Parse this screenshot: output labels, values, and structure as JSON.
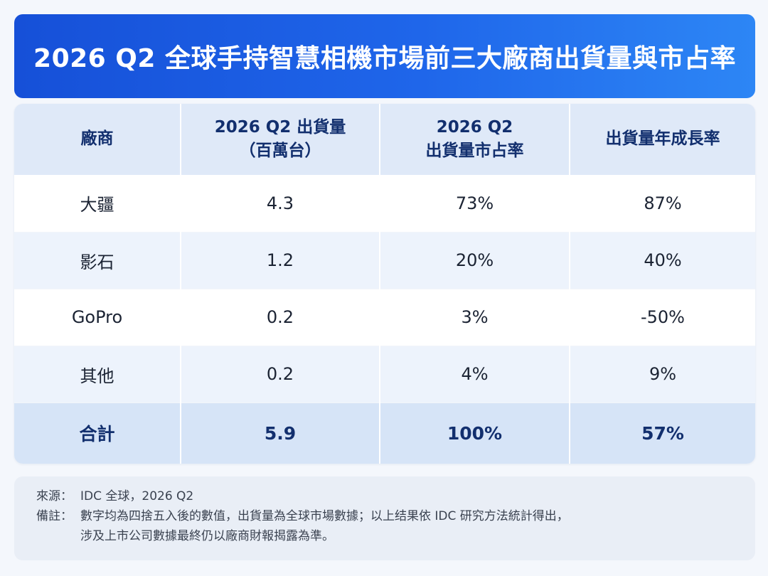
{
  "title": "2026 Q2 全球手持智慧相機市場前三大廠商出貨量與市占率",
  "table": {
    "headers": [
      {
        "line1": "廠商",
        "line2": ""
      },
      {
        "line1": "2026 Q2 出貨量",
        "line2": "（百萬台）"
      },
      {
        "line1": "2026 Q2",
        "line2": "出貨量市占率"
      },
      {
        "line1": "出貨量年成長率",
        "line2": ""
      }
    ],
    "rows": [
      {
        "vendor": "大疆",
        "shipments": "4.3",
        "share": "73%",
        "growth": "87%"
      },
      {
        "vendor": "影石",
        "shipments": "1.2",
        "share": "20%",
        "growth": "40%"
      },
      {
        "vendor": "GoPro",
        "shipments": "0.2",
        "share": "3%",
        "growth": "-50%"
      },
      {
        "vendor": "其他",
        "shipments": "0.2",
        "share": "4%",
        "growth": "9%"
      }
    ],
    "total": {
      "vendor": "合計",
      "shipments": "5.9",
      "share": "100%",
      "growth": "57%"
    }
  },
  "notes": {
    "source_label": "來源：",
    "source_text": "IDC 全球，2026 Q2",
    "remark_label": "備註：",
    "remark_line1": "數字均為四捨五入後的數值，出貨量為全球市場數據；以上结果依 IDC 研究方法統計得出，",
    "remark_line2": "涉及上市公司數據最終仍以廠商財報揭露為準。"
  },
  "colors": {
    "header_gradient_start": "#1650d8",
    "header_gradient_end": "#2d86f5",
    "header_text": "#122f6e"
  }
}
